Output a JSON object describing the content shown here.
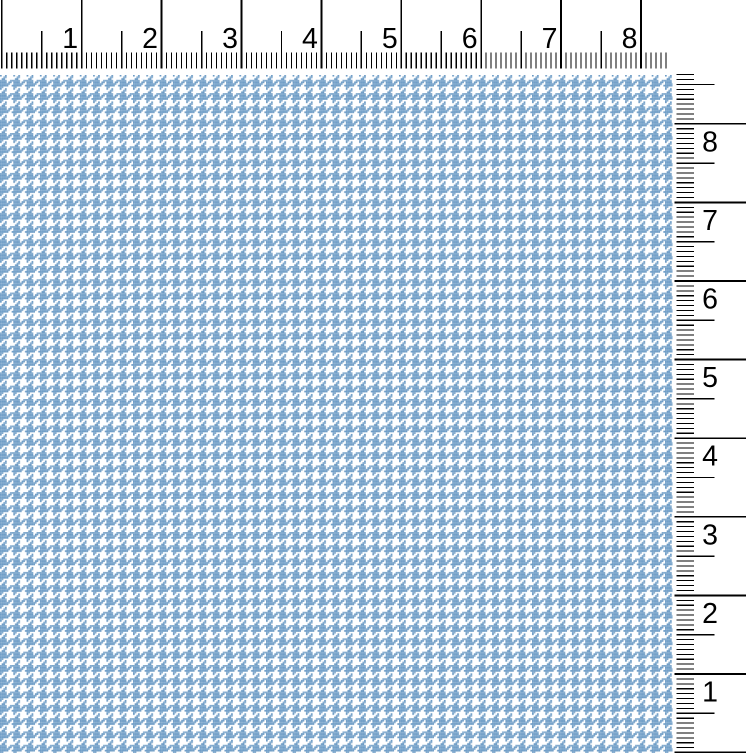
{
  "rulers": {
    "top": {
      "labels": [
        "1",
        "2",
        "3",
        "4",
        "5",
        "6",
        "7",
        "8"
      ]
    },
    "right": {
      "labels": [
        "8",
        "7",
        "6",
        "5",
        "4",
        "3",
        "2",
        "1"
      ]
    },
    "tick_color": "#000000",
    "label_color": "#000000"
  },
  "fabric": {
    "pattern_name": "houndstooth",
    "colors": {
      "primary_blue": "#6d9cc6",
      "ground_white": "#ffffff"
    }
  },
  "background_color": "#ffffff"
}
